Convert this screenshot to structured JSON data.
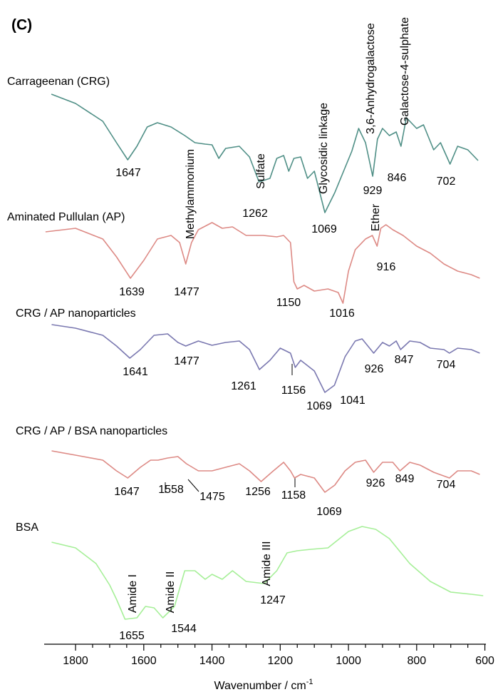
{
  "chart_data": {
    "type": "line",
    "title": "(C)",
    "x_label": "Wavenumber / cm",
    "x_label_sup": "-1",
    "xlim": [
      1892,
      597
    ],
    "xticks": [
      1800,
      1600,
      1400,
      1200,
      1000,
      800,
      600
    ],
    "ylim": [
      0,
      903
    ],
    "series": [
      {
        "name": "Carrageenan (CRG)",
        "color": "#4f8f86",
        "x": [
          1871,
          1800,
          1720,
          1680,
          1647,
          1620,
          1590,
          1560,
          1520,
          1480,
          1450,
          1420,
          1400,
          1380,
          1360,
          1320,
          1290,
          1262,
          1230,
          1210,
          1190,
          1175,
          1160,
          1140,
          1120,
          1100,
          1069,
          1040,
          1010,
          990,
          970,
          950,
          929,
          915,
          900,
          880,
          860,
          846,
          830,
          800,
          780,
          750,
          730,
          702,
          680,
          650,
          620
        ],
        "values": [
          771,
          758,
          733,
          703,
          679,
          698,
          725,
          731,
          725,
          713,
          703,
          701,
          700,
          681,
          695,
          698,
          683,
          648,
          653,
          681,
          685,
          663,
          681,
          683,
          653,
          663,
          605,
          633,
          668,
          691,
          723,
          703,
          656,
          708,
          723,
          713,
          718,
          698,
          738,
          723,
          728,
          693,
          703,
          673,
          698,
          693,
          678
        ]
      },
      {
        "name": "Aminated Pullulan (AP)",
        "color": "#dd8a85",
        "x": [
          1888,
          1800,
          1720,
          1680,
          1639,
          1600,
          1560,
          1520,
          1495,
          1477,
          1460,
          1440,
          1400,
          1370,
          1340,
          1300,
          1250,
          1210,
          1190,
          1170,
          1160,
          1150,
          1130,
          1100,
          1060,
          1030,
          1016,
          1000,
          980,
          950,
          930,
          916,
          905,
          890,
          870,
          840,
          800,
          760,
          720,
          680,
          640,
          615
        ],
        "values": [
          578,
          583,
          568,
          543,
          513,
          538,
          568,
          573,
          563,
          533,
          563,
          581,
          591,
          583,
          585,
          573,
          573,
          571,
          573,
          563,
          508,
          498,
          503,
          495,
          498,
          493,
          478,
          523,
          553,
          568,
          573,
          558,
          583,
          588,
          581,
          573,
          558,
          548,
          533,
          523,
          518,
          513
        ]
      },
      {
        "name": "CRG / AP nanoparticles",
        "color": "#7a78b0",
        "x": [
          1870,
          1800,
          1720,
          1680,
          1641,
          1610,
          1570,
          1530,
          1500,
          1477,
          1440,
          1400,
          1360,
          1320,
          1290,
          1261,
          1230,
          1200,
          1170,
          1156,
          1140,
          1100,
          1069,
          1041,
          1010,
          980,
          960,
          926,
          900,
          880,
          860,
          847,
          820,
          790,
          760,
          720,
          704,
          680,
          640,
          615
        ],
        "values": [
          448,
          443,
          433,
          418,
          401,
          413,
          433,
          435,
          423,
          418,
          425,
          419,
          423,
          425,
          413,
          385,
          398,
          415,
          408,
          388,
          398,
          383,
          353,
          363,
          403,
          425,
          428,
          408,
          423,
          418,
          425,
          413,
          425,
          423,
          415,
          413,
          408,
          415,
          413,
          408
        ]
      },
      {
        "name": "CRG / AP / BSA nanoparticles",
        "color": "#dd8a85",
        "x": [
          1870,
          1800,
          1720,
          1680,
          1647,
          1610,
          1580,
          1558,
          1530,
          1500,
          1475,
          1440,
          1400,
          1360,
          1320,
          1290,
          1256,
          1220,
          1190,
          1170,
          1158,
          1140,
          1100,
          1069,
          1040,
          1010,
          980,
          950,
          926,
          900,
          870,
          849,
          820,
          790,
          750,
          704,
          680,
          640,
          615
        ],
        "values": [
          271,
          265,
          258,
          243,
          233,
          248,
          258,
          258,
          261,
          263,
          253,
          243,
          243,
          248,
          253,
          243,
          228,
          243,
          255,
          243,
          233,
          238,
          233,
          213,
          223,
          243,
          255,
          258,
          241,
          255,
          255,
          243,
          255,
          251,
          241,
          233,
          243,
          243,
          238
        ]
      },
      {
        "name": "BSA",
        "color": "#a6ef98",
        "x": [
          1870,
          1800,
          1740,
          1700,
          1680,
          1655,
          1620,
          1595,
          1570,
          1544,
          1510,
          1480,
          1450,
          1420,
          1400,
          1370,
          1340,
          1300,
          1247,
          1210,
          1180,
          1150,
          1110,
          1060,
          1000,
          960,
          920,
          880,
          820,
          760,
          700,
          640,
          605
        ],
        "values": [
          143,
          135,
          113,
          83,
          63,
          35,
          37,
          53,
          51,
          37,
          53,
          103,
          103,
          91,
          98,
          91,
          103,
          88,
          85,
          103,
          128,
          131,
          133,
          135,
          158,
          165,
          161,
          148,
          113,
          88,
          73,
          70,
          68
        ]
      }
    ],
    "annotations": [
      "1647",
      "1262",
      "1069",
      "929",
      "846",
      "702",
      "1639",
      "1477",
      "1150",
      "1016",
      "916",
      "1641",
      "1477",
      "1261",
      "1156",
      "1069",
      "1041",
      "926",
      "847",
      "704",
      "1647",
      "1558",
      "1475",
      "1256",
      "1158",
      "1069",
      "926",
      "849",
      "704",
      "1655",
      "1544",
      "1247",
      "Methylammonium",
      "Sulfate",
      "Glycosidic linkage",
      "3,6-Anhydrogalactose",
      "Galactose-4-sulphate",
      "Ether",
      "Amide I",
      "Amide II",
      "Amide III"
    ]
  }
}
